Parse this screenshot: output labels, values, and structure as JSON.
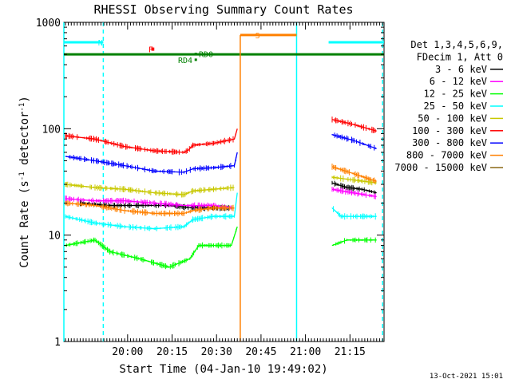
{
  "chart_data": {
    "type": "line",
    "title": "RHESSI Observing Summary Count Rates",
    "xlabel": "Start Time (04-Jan-10 19:49:02)",
    "ylabel_parts": [
      "Count Rate (s",
      "-1",
      " detector",
      "-1",
      ")"
    ],
    "y_scale": "log",
    "ylim": [
      1,
      1000
    ],
    "y_ticks": [
      1,
      10,
      100,
      1000
    ],
    "y_tick_labels": [
      "1",
      "10",
      "100",
      "1000"
    ],
    "x_range_min": [
      -10.5,
      97.5
    ],
    "x_ticks_min": [
      11,
      26,
      41,
      56,
      71,
      86
    ],
    "x_tick_labels": [
      "20:00",
      "20:15",
      "20:30",
      "20:45",
      "21:00",
      "21:15"
    ],
    "timestamp": "13-Oct-2021 15:01",
    "legend": {
      "header": [
        "Det 1,3,4,5,6,9,",
        "FDecim 1, Att 0"
      ],
      "placement": "right"
    },
    "series": [
      {
        "name": "3 - 6 keV",
        "color": "#000000",
        "segments": [
          [
            [
              -5,
              20
            ],
            [
              5,
              19
            ],
            [
              15,
              19
            ],
            [
              25,
              19
            ],
            [
              33,
              18
            ],
            [
              43,
              18
            ],
            [
              47,
              18
            ]
          ],
          [
            [
              80,
              31
            ],
            [
              85,
              28
            ],
            [
              90,
              27
            ],
            [
              95,
              25
            ]
          ]
        ]
      },
      {
        "name": "6 - 12 keV",
        "color": "#ff00ff",
        "segments": [
          [
            [
              -10,
              22
            ],
            [
              0,
              21
            ],
            [
              10,
              21
            ],
            [
              20,
              20
            ],
            [
              30,
              19
            ],
            [
              40,
              19
            ],
            [
              47,
              18
            ]
          ],
          [
            [
              80,
              27
            ],
            [
              87,
              25
            ],
            [
              95,
              23
            ]
          ]
        ]
      },
      {
        "name": "12 - 25 keV",
        "color": "#00ff00",
        "segments": [
          [
            [
              -10,
              8
            ],
            [
              0,
              9
            ],
            [
              5,
              7
            ],
            [
              15,
              6
            ],
            [
              25,
              5
            ],
            [
              32,
              6
            ],
            [
              35,
              8
            ],
            [
              40,
              8
            ],
            [
              46,
              8
            ],
            [
              48,
              12
            ]
          ],
          [
            [
              80,
              8
            ],
            [
              85,
              9
            ],
            [
              95,
              9
            ]
          ]
        ]
      },
      {
        "name": "25 - 50 keV",
        "color": "#00ffff",
        "segments": [
          [
            [
              -10,
              15
            ],
            [
              0,
              13
            ],
            [
              10,
              12
            ],
            [
              20,
              11.5
            ],
            [
              30,
              12
            ],
            [
              33,
              14
            ],
            [
              40,
              15
            ],
            [
              47,
              15
            ],
            [
              48,
              25
            ]
          ],
          [
            [
              80,
              18
            ],
            [
              83,
              15
            ],
            [
              90,
              15
            ],
            [
              95,
              15
            ]
          ]
        ]
      },
      {
        "name": "50 - 100 keV",
        "color": "#c8c800",
        "segments": [
          [
            [
              -10,
              30
            ],
            [
              0,
              28
            ],
            [
              10,
              27
            ],
            [
              20,
              25
            ],
            [
              30,
              24
            ],
            [
              33,
              26
            ],
            [
              40,
              27
            ],
            [
              47,
              28
            ]
          ],
          [
            [
              80,
              35
            ],
            [
              87,
              33
            ],
            [
              95,
              31
            ]
          ]
        ]
      },
      {
        "name": "100 - 300 keV",
        "color": "#ff0000",
        "segments": [
          [
            [
              -10,
              86
            ],
            [
              0,
              80
            ],
            [
              10,
              68
            ],
            [
              20,
              62
            ],
            [
              30,
              60
            ],
            [
              31.5,
              63
            ],
            [
              33,
              70
            ],
            [
              40,
              73
            ],
            [
              47,
              80
            ],
            [
              48,
              100
            ]
          ],
          [
            [
              80,
              122
            ],
            [
              87,
              110
            ],
            [
              95,
              95
            ]
          ]
        ]
      },
      {
        "name": "300 - 800 keV",
        "color": "#0000ff",
        "segments": [
          [
            [
              -10,
              55
            ],
            [
              0,
              50
            ],
            [
              10,
              45
            ],
            [
              20,
              40
            ],
            [
              30,
              39
            ],
            [
              33,
              42
            ],
            [
              40,
              43
            ],
            [
              47,
              45
            ],
            [
              48,
              60
            ]
          ],
          [
            [
              80,
              88
            ],
            [
              87,
              78
            ],
            [
              95,
              65
            ]
          ]
        ]
      },
      {
        "name": "800 - 7000 keV",
        "color": "#ff8000",
        "segments": [
          [
            [
              -10,
              20
            ],
            [
              0,
              19
            ],
            [
              10,
              17
            ],
            [
              20,
              16
            ],
            [
              30,
              16
            ],
            [
              33,
              17
            ],
            [
              40,
              18
            ],
            [
              47,
              18
            ]
          ],
          [
            [
              80,
              44
            ],
            [
              87,
              38
            ],
            [
              95,
              32
            ]
          ]
        ]
      },
      {
        "name": "7000 - 15000 keV",
        "color": "#8b6914",
        "segments": []
      }
    ],
    "annotations": [
      {
        "label": "N",
        "color": "#00ffff",
        "text_x_min": 1,
        "intervals": [
          [
            -10.5,
            2.8
          ],
          [
            78.8,
            97.5
          ]
        ],
        "y": 650
      },
      {
        "label": "F",
        "color": "#ff0000",
        "text_x_min": 18,
        "bar_x_min": [
          19,
          20
        ],
        "y": 560
      },
      {
        "label": "S",
        "color": "#ff8000",
        "text_x_min": 54,
        "vline_min": 49,
        "interval": [
          49,
          68
        ],
        "y": 760
      },
      {
        "label": "RD0",
        "color": "#008000",
        "text_x_min": 35,
        "dot_x_min": 34,
        "y": 505
      },
      {
        "label": "RD4",
        "color": "#008000",
        "text_x_min": 28,
        "dot_x_min": 34,
        "y": 445
      }
    ],
    "eclipse_vlines_min": [
      [
        -10.5,
        "solid"
      ],
      [
        2.8,
        "dashed"
      ],
      [
        68,
        "solid"
      ],
      [
        97,
        "dashed"
      ]
    ],
    "ecl_color": "#00ffff",
    "green_bar": {
      "color": "#008000",
      "y": 500,
      "x_range": [
        -10.5,
        97.5
      ]
    }
  }
}
